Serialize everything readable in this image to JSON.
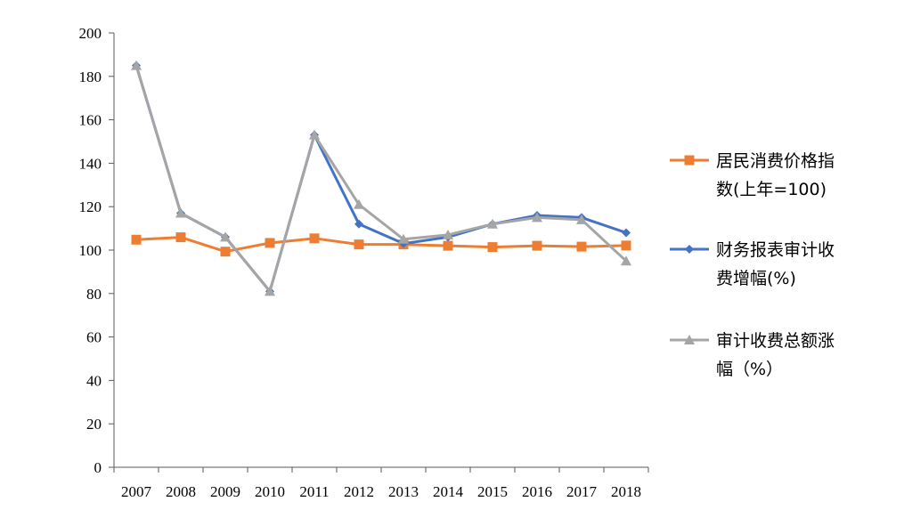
{
  "chart_data": {
    "type": "line",
    "title": "",
    "xlabel": "",
    "ylabel": "",
    "ylim": [
      0,
      200
    ],
    "yticks": [
      0,
      20,
      40,
      60,
      80,
      100,
      120,
      140,
      160,
      180,
      200
    ],
    "categories": [
      "2007",
      "2008",
      "2009",
      "2010",
      "2011",
      "2012",
      "2013",
      "2014",
      "2015",
      "2016",
      "2017",
      "2018"
    ],
    "grid": false,
    "legend_position": "right",
    "series": [
      {
        "name": "居民消费价格指数(上年=100)",
        "legend_lines": [
          "居民消费价格指",
          "数(上年=100)"
        ],
        "color": "#ED7D31",
        "marker": "square",
        "values": [
          104.8,
          105.9,
          99.3,
          103.3,
          105.4,
          102.6,
          102.6,
          102.0,
          101.4,
          102.0,
          101.6,
          102.1
        ]
      },
      {
        "name": "财务报表审计收费增幅(%)",
        "legend_lines": [
          "财务报表审计收",
          "费增幅(%)"
        ],
        "color": "#4472C4",
        "marker": "diamond",
        "values": [
          185,
          117,
          106,
          81,
          153,
          112,
          103,
          106,
          112,
          116,
          115,
          108
        ]
      },
      {
        "name": "审计收费总额涨幅（%）",
        "legend_lines": [
          "审计收费总额涨",
          "幅（%）"
        ],
        "color": "#A5A5A5",
        "marker": "triangle",
        "values": [
          185,
          117,
          106,
          81,
          153,
          121,
          105,
          107,
          112,
          115,
          114,
          95
        ]
      }
    ]
  }
}
